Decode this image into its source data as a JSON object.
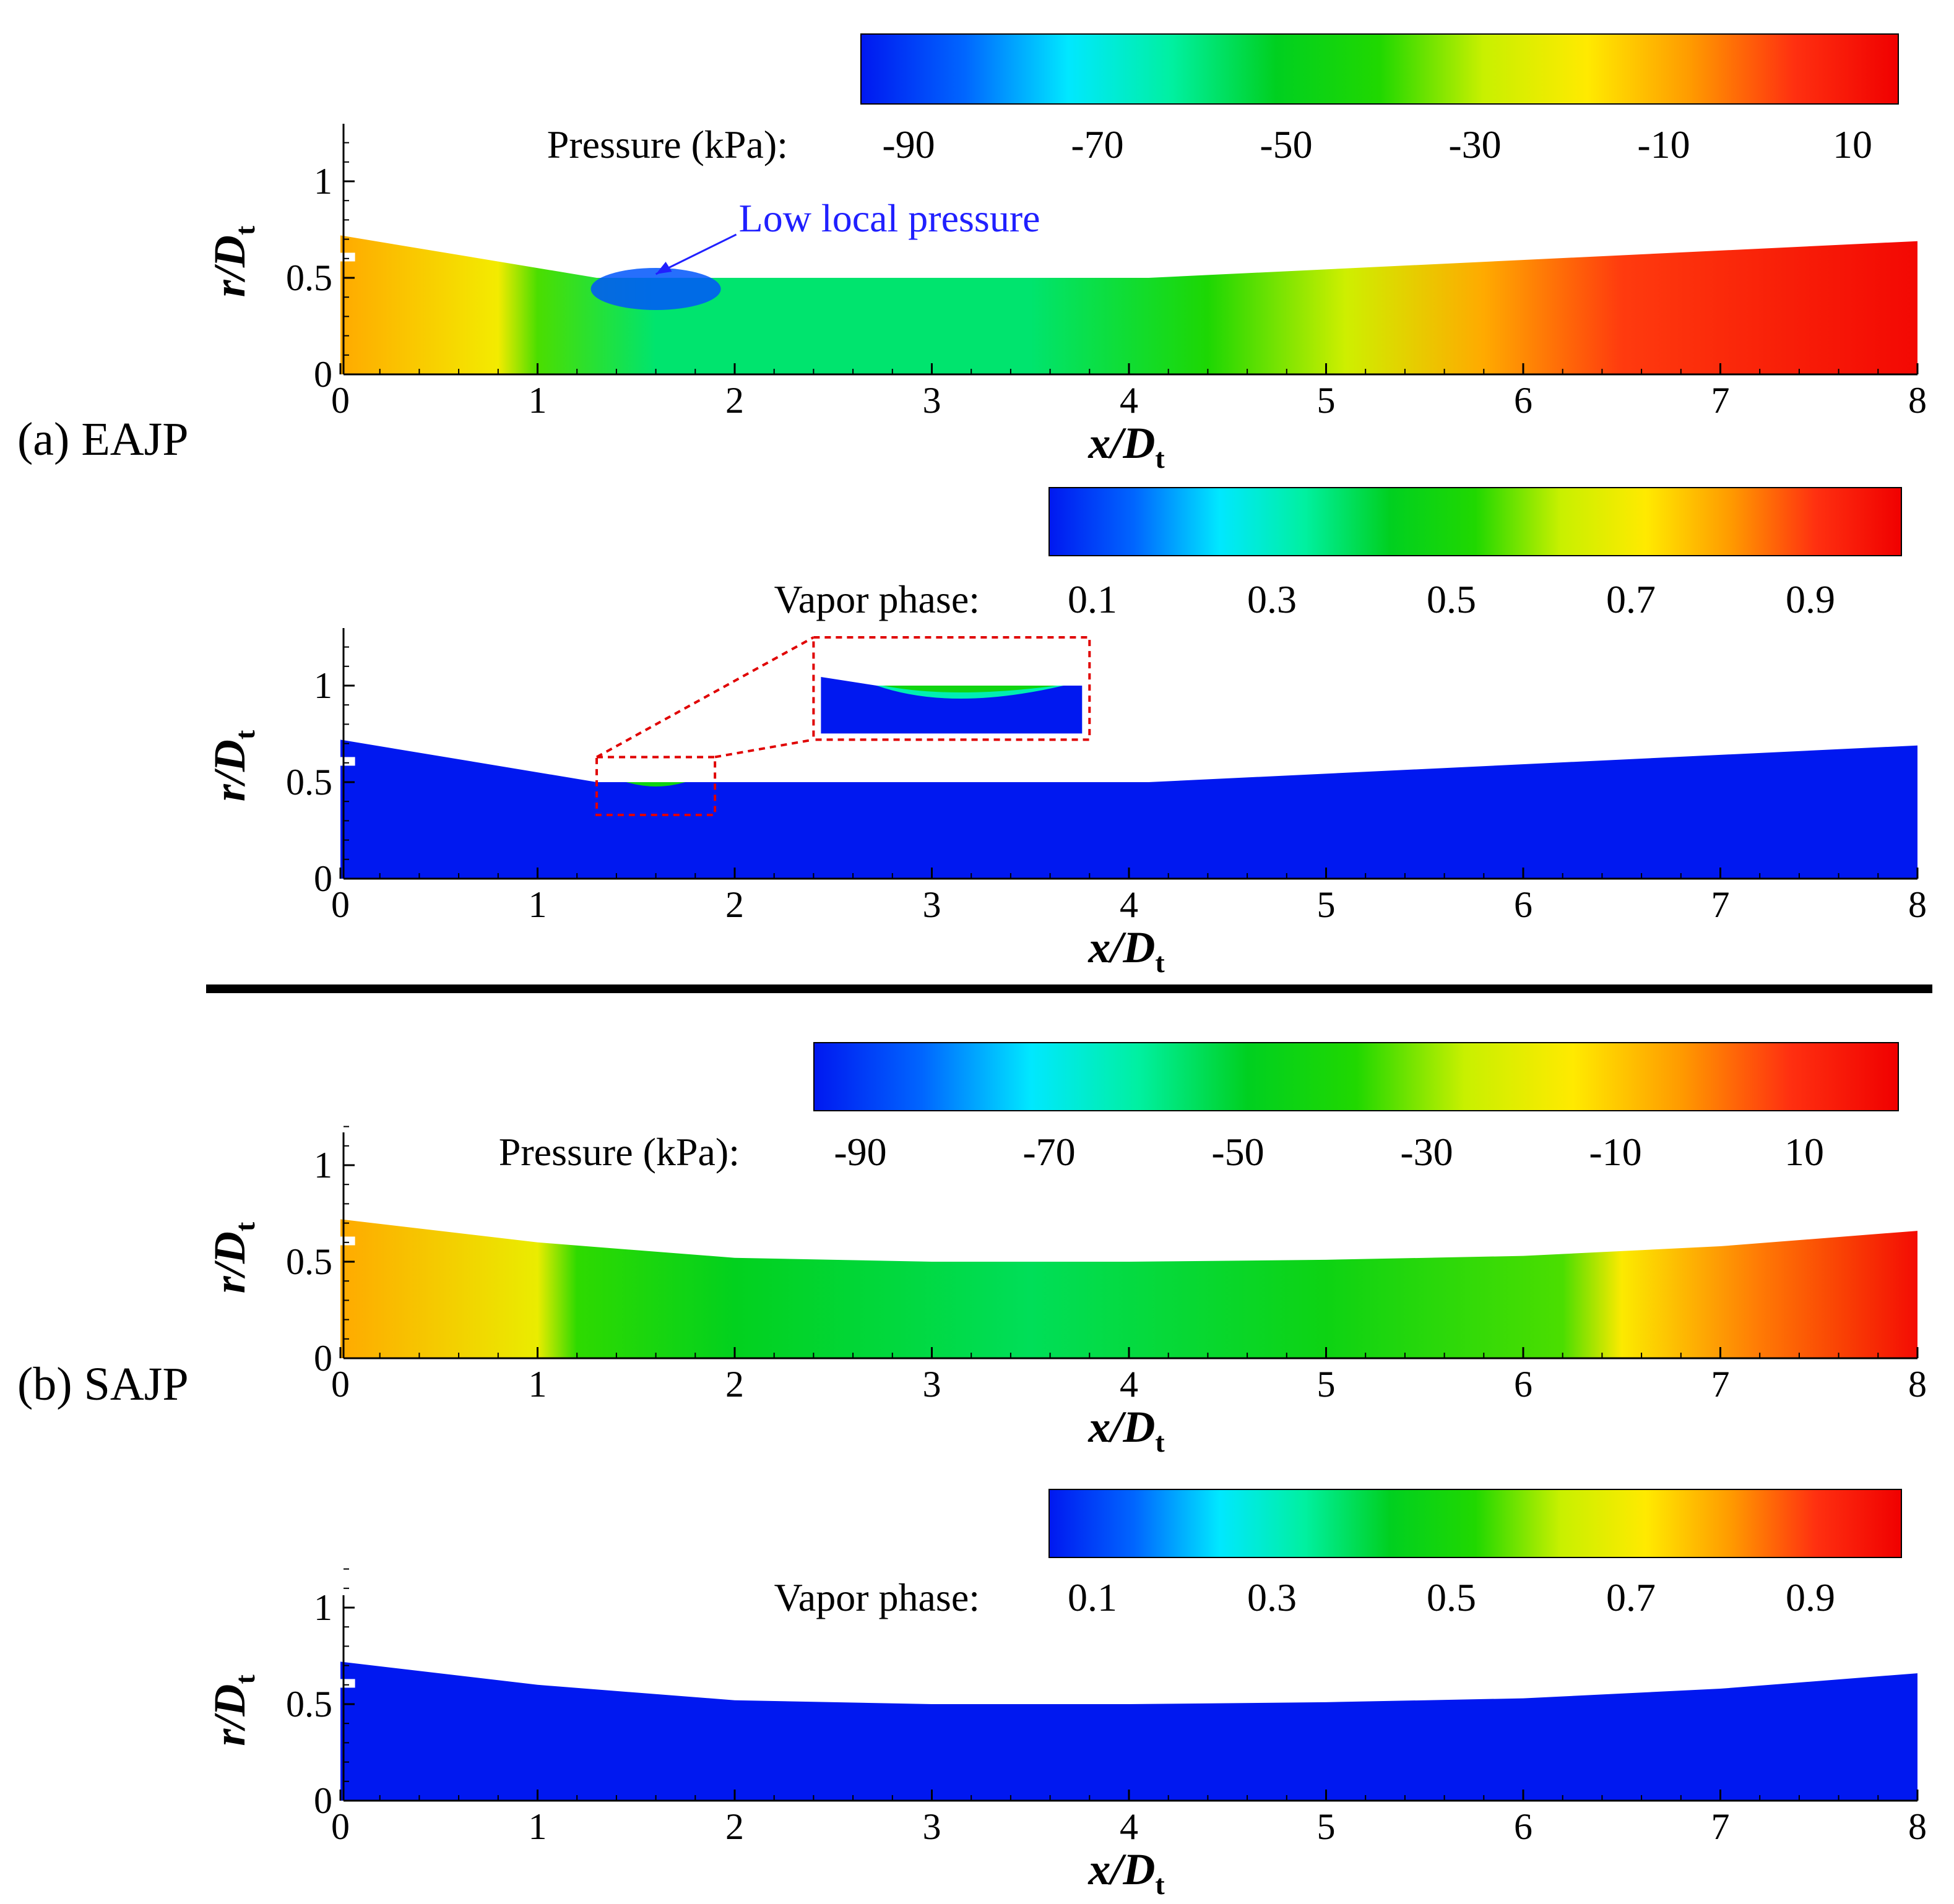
{
  "figure": {
    "panel_a_label": "(a) EAJP",
    "panel_b_label": "(b) SAJP"
  },
  "colors": {
    "jet": [
      "#0018f0",
      "#0066ff",
      "#00e8ff",
      "#00f0a0",
      "#00d020",
      "#20d800",
      "#c8f000",
      "#ffea00",
      "#ff9a00",
      "#ff3010",
      "#f00000"
    ],
    "annotation": "#2020ff",
    "zoom_box": "#e00000"
  },
  "chart_data": [
    {
      "id": "eajp-pressure",
      "type": "heatmap",
      "title": "Pressure (kPa):",
      "colorbar_ticks": [
        "-90",
        "-70",
        "-50",
        "-30",
        "-10",
        "10"
      ],
      "colorbar_range": [
        -100,
        18
      ],
      "xlabel": "x/Dt",
      "ylabel": "r/Dt",
      "xlim": [
        0,
        8
      ],
      "ylim": [
        0,
        1.3
      ],
      "xticks": [
        "0",
        "1",
        "2",
        "3",
        "4",
        "5",
        "6",
        "7",
        "8"
      ],
      "yticks": [
        "0",
        "0.5",
        "1"
      ],
      "wall_profile": {
        "x": [
          0,
          1.3,
          4.1,
          8
        ],
        "r": [
          0.72,
          0.5,
          0.5,
          0.69
        ]
      },
      "field_stops": [
        {
          "x": 0.0,
          "value": -8
        },
        {
          "x": 0.8,
          "value": -20
        },
        {
          "x": 1.0,
          "value": -38
        },
        {
          "x": 1.6,
          "value": -60
        },
        {
          "x": 3.5,
          "value": -60
        },
        {
          "x": 4.4,
          "value": -42
        },
        {
          "x": 5.1,
          "value": -28
        },
        {
          "x": 5.8,
          "value": -8
        },
        {
          "x": 6.5,
          "value": 5
        },
        {
          "x": 8.0,
          "value": 16
        }
      ],
      "annotation": "Low local pressure",
      "annotation_point": {
        "x": 1.6,
        "r": 0.5
      }
    },
    {
      "id": "eajp-vapor",
      "type": "heatmap",
      "title": "Vapor phase:",
      "colorbar_ticks": [
        "0.1",
        "0.3",
        "0.5",
        "0.7",
        "0.9"
      ],
      "colorbar_range": [
        0,
        1
      ],
      "xlabel": "x/Dt",
      "ylabel": "r/Dt",
      "xlim": [
        0,
        8
      ],
      "ylim": [
        0,
        1.3
      ],
      "xticks": [
        "0",
        "1",
        "2",
        "3",
        "4",
        "5",
        "6",
        "7",
        "8"
      ],
      "yticks": [
        "0",
        "0.5",
        "1"
      ],
      "wall_profile": {
        "x": [
          0,
          1.3,
          4.1,
          8
        ],
        "r": [
          0.72,
          0.5,
          0.5,
          0.69
        ]
      },
      "field_stops": [
        {
          "x": 0.0,
          "value": 0
        },
        {
          "x": 8.0,
          "value": 0
        }
      ],
      "cavity": {
        "x_start": 1.45,
        "x_end": 1.75,
        "value": 0.45
      },
      "zoom_region": {
        "x": [
          1.3,
          1.9
        ],
        "r": [
          0.33,
          0.63
        ]
      }
    },
    {
      "id": "sajp-pressure",
      "type": "heatmap",
      "title": "Pressure (kPa):",
      "colorbar_ticks": [
        "-90",
        "-70",
        "-50",
        "-30",
        "-10",
        "10"
      ],
      "colorbar_range": [
        -100,
        18
      ],
      "xlabel": "x/Dt",
      "ylabel": "r/Dt",
      "xlim": [
        0,
        8
      ],
      "ylim": [
        0,
        1.3
      ],
      "xticks": [
        "0",
        "1",
        "2",
        "3",
        "4",
        "5",
        "6",
        "7",
        "8"
      ],
      "yticks": [
        "0",
        "0.5",
        "1"
      ],
      "wall_profile": {
        "x": [
          0,
          1,
          2,
          3,
          4,
          5,
          6,
          7,
          8
        ],
        "r": [
          0.72,
          0.6,
          0.52,
          0.5,
          0.5,
          0.51,
          0.53,
          0.58,
          0.66
        ]
      },
      "field_stops": [
        {
          "x": 0.0,
          "value": -8
        },
        {
          "x": 1.0,
          "value": -22
        },
        {
          "x": 1.2,
          "value": -40
        },
        {
          "x": 2.0,
          "value": -52
        },
        {
          "x": 3.5,
          "value": -58
        },
        {
          "x": 5.0,
          "value": -48
        },
        {
          "x": 6.2,
          "value": -38
        },
        {
          "x": 6.5,
          "value": -18
        },
        {
          "x": 7.2,
          "value": -2
        },
        {
          "x": 8.0,
          "value": 15
        }
      ]
    },
    {
      "id": "sajp-vapor",
      "type": "heatmap",
      "title": "Vapor phase:",
      "colorbar_ticks": [
        "0.1",
        "0.3",
        "0.5",
        "0.7",
        "0.9"
      ],
      "colorbar_range": [
        0,
        1
      ],
      "xlabel": "x/Dt",
      "ylabel": "r/Dt",
      "xlim": [
        0,
        8
      ],
      "ylim": [
        0,
        1.3
      ],
      "xticks": [
        "0",
        "1",
        "2",
        "3",
        "4",
        "5",
        "6",
        "7",
        "8"
      ],
      "yticks": [
        "0",
        "0.5",
        "1"
      ],
      "wall_profile": {
        "x": [
          0,
          1,
          2,
          3,
          4,
          5,
          6,
          7,
          8
        ],
        "r": [
          0.72,
          0.6,
          0.52,
          0.5,
          0.5,
          0.51,
          0.53,
          0.58,
          0.66
        ]
      },
      "field_stops": [
        {
          "x": 0.0,
          "value": 0
        },
        {
          "x": 8.0,
          "value": 0
        }
      ]
    }
  ]
}
